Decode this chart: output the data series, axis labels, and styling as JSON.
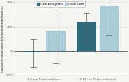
{
  "groups": [
    "1-6 mo Postenrollment",
    "7-12 mo Postenrollment"
  ],
  "series": [
    "Care Ecosystem",
    "Usual Care"
  ],
  "bar_colors": [
    "#2e6b7a",
    "#a8cdd8"
  ],
  "bar_values": [
    [
      -10,
      170
    ],
    [
      240,
      370
    ]
  ],
  "error_low": [
    [
      -130,
      -100
    ],
    [
      70,
      130
    ]
  ],
  "error_high": [
    [
      100,
      340
    ],
    [
      310,
      490
    ]
  ],
  "ylim": [
    -200,
    400
  ],
  "yticks": [
    -200,
    0,
    200,
    400
  ],
  "ylabel": "Change in mean predicted monthly total cost ($)",
  "legend_labels": [
    "Care Ecosystem",
    "Usual Care"
  ],
  "bar_width": 0.18,
  "background_color": "#f5f5f2",
  "grid_color": "#dddddd",
  "zero_line_color": "#333333"
}
